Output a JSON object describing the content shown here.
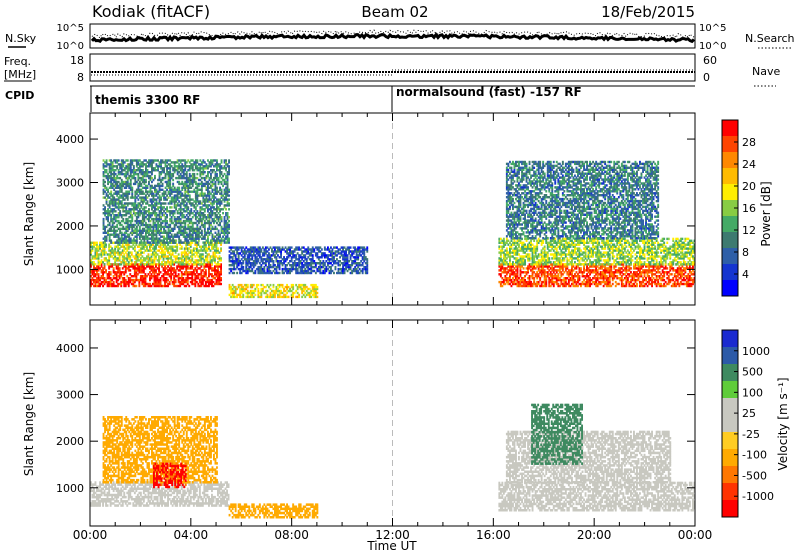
{
  "header": {
    "title": "Kodiak (fitACF)",
    "beam": "Beam 02",
    "date": "18/Feb/2015"
  },
  "status_panels": {
    "nsky_label": "N.Sky",
    "freq_label_line1": "Freq.",
    "freq_label_line2": "[MHz]",
    "cpid_label": "CPID",
    "nsearch_label": "N.Search",
    "nave_label": "Nave",
    "noise_ticks": [
      "10^5",
      "10^0"
    ],
    "freq_ticks": [
      "18",
      "8"
    ],
    "nave_ticks": [
      "60",
      "0"
    ],
    "cpid_segments": [
      "themis 3300 RF",
      "normalsound (fast) -157 RF"
    ]
  },
  "x_axis": {
    "label": "Time UT",
    "ticks": [
      "00:00",
      "04:00",
      "08:00",
      "12:00",
      "16:00",
      "20:00",
      "00:00"
    ]
  },
  "power_colorbar": {
    "label": "Power [dB]",
    "ticks": [
      "28",
      "24",
      "20",
      "16",
      "12",
      "8",
      "4"
    ],
    "colors": [
      "#ff0000",
      "#ff4400",
      "#ff8800",
      "#ffbb00",
      "#ffee00",
      "#88cc44",
      "#44aa66",
      "#3d7a70",
      "#2e5fa8",
      "#1535d0",
      "#0000ff"
    ]
  },
  "velocity_colorbar": {
    "label": "Velocity [m s⁻¹]",
    "ticks": [
      "1000",
      "500",
      "100",
      "25",
      "-25",
      "-100",
      "-500",
      "-1000"
    ],
    "colors": [
      "#1a2ad0",
      "#2c5aa8",
      "#3e8a60",
      "#5fcc3a",
      "#c8c8c0",
      "#c8c8c0",
      "#ffcc22",
      "#ffaa00",
      "#ff7700",
      "#ff3300",
      "#ff0000"
    ]
  },
  "chart_data": [
    {
      "type": "heatmap",
      "title": "Power",
      "xlabel": "Time UT",
      "ylabel": "Slant Range [km]",
      "x_ticks": [
        "00:00",
        "04:00",
        "08:00",
        "12:00",
        "16:00",
        "20:00",
        "00:00"
      ],
      "y_ticks": [
        1000,
        2000,
        3000,
        4000
      ],
      "xlim": [
        0,
        24
      ],
      "ylim": [
        180,
        4600
      ],
      "colorbar_label": "Power [dB]",
      "colorbar_ticks": [
        4,
        8,
        12,
        16,
        20,
        24,
        28
      ],
      "clim": [
        0,
        30
      ],
      "regions": [
        {
          "t": [
            0.0,
            5.2
          ],
          "r": [
            600,
            1100
          ],
          "value": 28
        },
        {
          "t": [
            0.0,
            5.2
          ],
          "r": [
            1100,
            1600
          ],
          "value": 16
        },
        {
          "t": [
            0.5,
            5.5
          ],
          "r": [
            1600,
            3500
          ],
          "value": 10
        },
        {
          "t": [
            5.5,
            9.0
          ],
          "r": [
            350,
            650
          ],
          "value": 18
        },
        {
          "t": [
            5.5,
            11.0
          ],
          "r": [
            900,
            1500
          ],
          "value": 6
        },
        {
          "t": [
            16.2,
            24.0
          ],
          "r": [
            600,
            1100
          ],
          "value": 26
        },
        {
          "t": [
            16.2,
            24.0
          ],
          "r": [
            1100,
            1700
          ],
          "value": 15
        },
        {
          "t": [
            16.5,
            22.5
          ],
          "r": [
            1700,
            3500
          ],
          "value": 9
        }
      ]
    },
    {
      "type": "heatmap",
      "title": "Velocity",
      "xlabel": "Time UT",
      "ylabel": "Slant Range [km]",
      "x_ticks": [
        "00:00",
        "04:00",
        "08:00",
        "12:00",
        "16:00",
        "20:00",
        "00:00"
      ],
      "y_ticks": [
        1000,
        2000,
        3000,
        4000
      ],
      "xlim": [
        0,
        24
      ],
      "ylim": [
        180,
        4600
      ],
      "colorbar_label": "Velocity [m s⁻¹]",
      "colorbar_ticks": [
        -1000,
        -500,
        -100,
        -25,
        25,
        100,
        500,
        1000
      ],
      "regions": [
        {
          "t": [
            0.0,
            5.5
          ],
          "r": [
            600,
            1100
          ],
          "value": 0
        },
        {
          "t": [
            0.5,
            5.0
          ],
          "r": [
            1100,
            2500
          ],
          "value": -150
        },
        {
          "t": [
            2.5,
            3.8
          ],
          "r": [
            1000,
            1500
          ],
          "value": -900
        },
        {
          "t": [
            5.5,
            9.0
          ],
          "r": [
            350,
            650
          ],
          "value": -150
        },
        {
          "t": [
            16.2,
            24.0
          ],
          "r": [
            500,
            1100
          ],
          "value": 0
        },
        {
          "t": [
            16.5,
            23.0
          ],
          "r": [
            1100,
            2200
          ],
          "value": 0
        },
        {
          "t": [
            17.5,
            19.5
          ],
          "r": [
            1500,
            2800
          ],
          "value": 100
        }
      ]
    }
  ]
}
